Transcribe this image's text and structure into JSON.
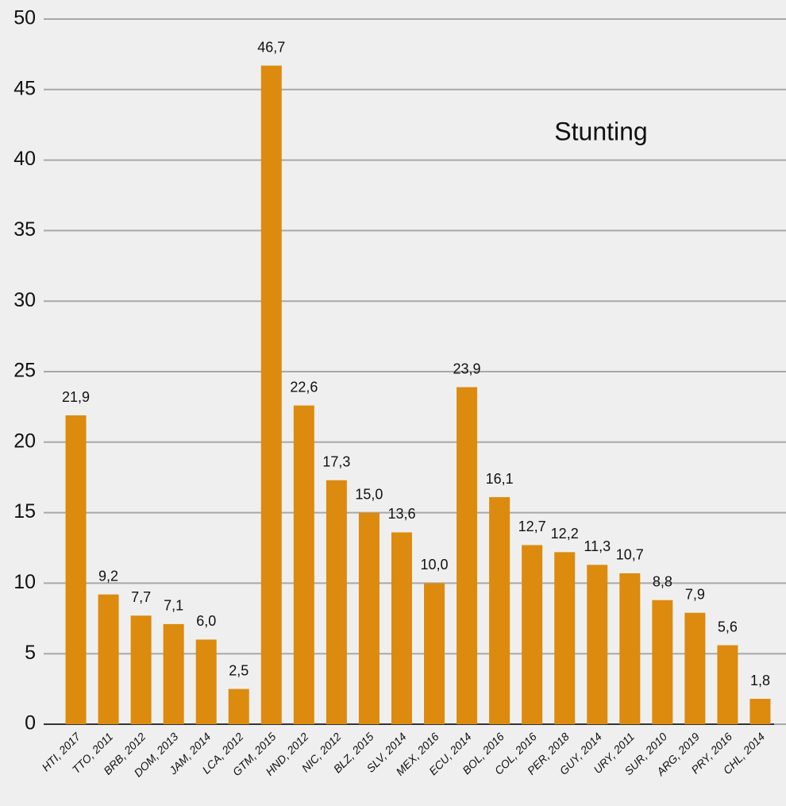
{
  "chart_data": {
    "type": "bar",
    "title": "Stunting",
    "categories": [
      "HTI, 2017",
      "TTO, 2011",
      "BRB, 2012",
      "DOM, 2013",
      "JAM, 2014",
      "LCA, 2012",
      "GTM, 2015",
      "HND, 2012",
      "NIC, 2012",
      "BLZ, 2015",
      "SLV, 2014",
      "MEX, 2016",
      "ECU, 2014",
      "BOL, 2016",
      "COL, 2016",
      "PER, 2018",
      "GUY, 2014",
      "URY, 2011",
      "SUR, 2010",
      "ARG, 2019",
      "PRY, 2016",
      "CHL, 2014"
    ],
    "values": [
      21.9,
      9.2,
      7.7,
      7.1,
      6.0,
      2.5,
      46.7,
      22.6,
      17.3,
      15.0,
      13.6,
      10.0,
      23.9,
      16.1,
      12.7,
      12.2,
      11.3,
      10.7,
      8.8,
      7.9,
      5.6,
      1.8
    ],
    "value_labels": [
      "21,9",
      "9,2",
      "7,7",
      "7,1",
      "6,0",
      "2,5",
      "46,7",
      "22,6",
      "17,3",
      "15,0",
      "13,6",
      "10,0",
      "23,9",
      "16,1",
      "12,7",
      "12,2",
      "11,3",
      "10,7",
      "8,8",
      "7,9",
      "5,6",
      "1,8"
    ],
    "color": "#dc8b0e",
    "ylim": [
      0,
      50
    ],
    "yticks": [
      0,
      5,
      10,
      15,
      20,
      25,
      30,
      35,
      40,
      45,
      50
    ],
    "grid": true
  }
}
